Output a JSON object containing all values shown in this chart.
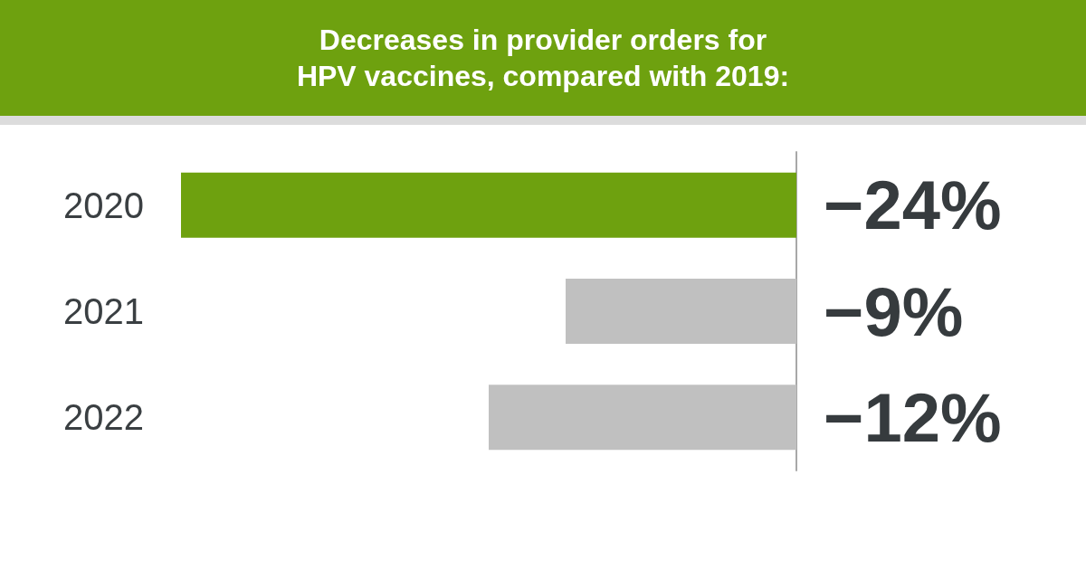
{
  "chart_data": {
    "type": "bar",
    "orientation": "horizontal",
    "title": "Decreases in provider orders for\nHPV vaccines, compared with 2019:",
    "categories": [
      "2020",
      "2021",
      "2022"
    ],
    "values": [
      -24,
      -9,
      -12
    ],
    "colors": [
      "#6ea10f",
      "#c0c0c0",
      "#c0c0c0"
    ],
    "value_labels": [
      "−24%",
      "−9%",
      "−12%"
    ],
    "xlim": [
      -24,
      0
    ],
    "tick_labels": "y",
    "grid": false
  }
}
